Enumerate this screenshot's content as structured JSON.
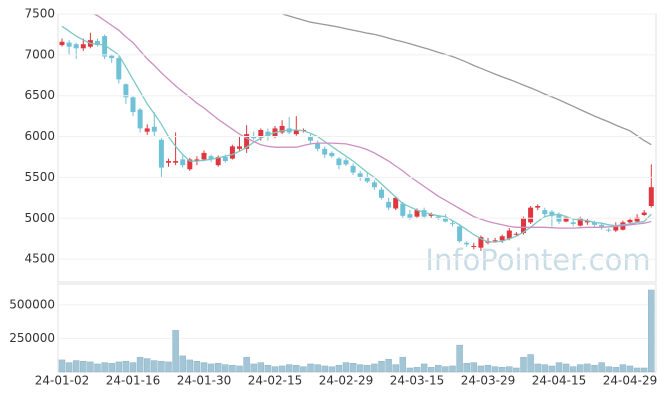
{
  "watermark": "InfoPointer.com",
  "chart_data": [
    {
      "type": "candlestick",
      "ylim": [
        4220,
        7500
      ],
      "yticks": [
        4500,
        5000,
        5500,
        6000,
        6500,
        7000,
        7500
      ],
      "up_color": "#e0363f",
      "down_color": "#6ec1d6",
      "open": [
        7120,
        7150,
        7130,
        7080,
        7100,
        7170,
        7230,
        6990,
        6960,
        6640,
        6480,
        6330,
        6060,
        6120,
        5960,
        5680,
        5680,
        5720,
        5600,
        5700,
        5720,
        5760,
        5650,
        5750,
        5730,
        5850,
        5850,
        6000,
        5990,
        6060,
        6000,
        6050,
        6100,
        6030,
        6080,
        6000,
        5920,
        5850,
        5800,
        5730,
        5710,
        5640,
        5550,
        5500,
        5440,
        5350,
        5200,
        5120,
        5180,
        5050,
        5020,
        5100,
        5030,
        5020,
        5000,
        4940,
        4900,
        4700,
        4650,
        4640,
        4700,
        4720,
        4730,
        4750,
        4800,
        4820,
        4950,
        5130,
        5100,
        5080,
        5050,
        4960,
        4950,
        4910,
        4950,
        4950,
        4920,
        4860,
        4850,
        4860,
        4950,
        4960,
        5040,
        5150
      ],
      "high": [
        7200,
        7180,
        7150,
        7200,
        7270,
        7200,
        7250,
        7010,
        6980,
        6650,
        6500,
        6350,
        6150,
        6300,
        5980,
        5730,
        6050,
        5770,
        5740,
        5760,
        5830,
        5780,
        5770,
        5780,
        5900,
        6000,
        6140,
        6060,
        6100,
        6100,
        6130,
        6200,
        6240,
        6250,
        6100,
        6030,
        5950,
        5880,
        5820,
        5750,
        5740,
        5670,
        5580,
        5560,
        5470,
        5380,
        5250,
        5270,
        5200,
        5100,
        5120,
        5130,
        5070,
        5040,
        5050,
        4970,
        4930,
        4720,
        4700,
        4790,
        4760,
        4760,
        4800,
        4880,
        4830,
        5020,
        5150,
        5170,
        5130,
        5100,
        5070,
        5030,
        4990,
        5020,
        4990,
        4970,
        4950,
        4880,
        4950,
        4970,
        5010,
        5050,
        5100,
        5660
      ],
      "low": [
        7100,
        7000,
        6950,
        7050,
        7080,
        7100,
        6950,
        6900,
        6650,
        6400,
        6250,
        6050,
        6020,
        6000,
        5500,
        5630,
        5650,
        5620,
        5580,
        5650,
        5700,
        5690,
        5630,
        5680,
        5720,
        5820,
        5800,
        5960,
        5950,
        5950,
        5980,
        6030,
        6030,
        6010,
        6050,
        5900,
        5820,
        5740,
        5740,
        5600,
        5640,
        5530,
        5460,
        5430,
        5350,
        5230,
        5100,
        5100,
        5000,
        4980,
        5000,
        5000,
        5000,
        4980,
        4950,
        4900,
        4700,
        4650,
        4620,
        4600,
        4680,
        4700,
        4700,
        4730,
        4780,
        4800,
        4930,
        5100,
        5020,
        4900,
        4930,
        4950,
        4900,
        4900,
        4920,
        4900,
        4860,
        4830,
        4830,
        4850,
        4930,
        4950,
        5030,
        5130
      ],
      "close": [
        7160,
        7100,
        7080,
        7130,
        7180,
        7120,
        6980,
        6960,
        6700,
        6480,
        6300,
        6100,
        6100,
        6060,
        5620,
        5700,
        5700,
        5650,
        5720,
        5720,
        5800,
        5720,
        5750,
        5700,
        5880,
        5880,
        6030,
        5980,
        6080,
        6000,
        6100,
        6130,
        6050,
        6080,
        6080,
        5950,
        5850,
        5780,
        5760,
        5650,
        5660,
        5560,
        5500,
        5450,
        5380,
        5250,
        5130,
        5250,
        5030,
        5000,
        5100,
        5020,
        5050,
        5000,
        4960,
        4930,
        4720,
        4680,
        4660,
        4770,
        4720,
        4730,
        4780,
        4850,
        4810,
        5000,
        5130,
        5150,
        5050,
        5030,
        4960,
        5010,
        4930,
        5000,
        4970,
        4920,
        4900,
        4850,
        4900,
        4950,
        4980,
        5010,
        5070,
        5380
      ],
      "series": [
        {
          "color": "#7cc8c4",
          "values": [
            7350,
            7290,
            7230,
            7180,
            7140,
            7130,
            7120,
            7060,
            7000,
            6850,
            6700,
            6550,
            6400,
            6280,
            6150,
            6000,
            5880,
            5780,
            5700,
            5700,
            5710,
            5720,
            5740,
            5760,
            5780,
            5820,
            5870,
            5930,
            5980,
            6020,
            6050,
            6070,
            6080,
            6080,
            6070,
            6040,
            6000,
            5940,
            5880,
            5820,
            5760,
            5700,
            5630,
            5560,
            5500,
            5420,
            5340,
            5260,
            5180,
            5140,
            5100,
            5070,
            5050,
            5030,
            5020,
            4970,
            4920,
            4860,
            4800,
            4750,
            4710,
            4710,
            4720,
            4750,
            4780,
            4830,
            4890,
            4960,
            5020,
            5040,
            5050,
            5020,
            4990,
            4980,
            4970,
            4950,
            4940,
            4920,
            4910,
            4920,
            4930,
            4950,
            4960,
            5050
          ]
        },
        {
          "color": "#cc8fc4",
          "values": [
            null,
            null,
            null,
            null,
            7520,
            7480,
            7420,
            7360,
            7300,
            7220,
            7150,
            7050,
            6950,
            6870,
            6780,
            6700,
            6620,
            6550,
            6480,
            6410,
            6350,
            6280,
            6210,
            6150,
            6090,
            6030,
            5980,
            5940,
            5900,
            5880,
            5870,
            5870,
            5870,
            5870,
            5890,
            5910,
            5920,
            5920,
            5920,
            5915,
            5910,
            5890,
            5870,
            5840,
            5800,
            5750,
            5700,
            5640,
            5580,
            5510,
            5450,
            5390,
            5330,
            5270,
            5220,
            5170,
            5120,
            5070,
            5020,
            4990,
            4960,
            4940,
            4920,
            4900,
            4890,
            4890,
            4890,
            4890,
            4890,
            4885,
            4880,
            4880,
            4880,
            4885,
            4890,
            4890,
            4890,
            4895,
            4900,
            4910,
            4920,
            4930,
            4940,
            4960
          ]
        },
        {
          "color": "#999999",
          "values": [
            null,
            null,
            null,
            null,
            null,
            null,
            null,
            null,
            null,
            null,
            null,
            null,
            null,
            null,
            null,
            null,
            null,
            null,
            null,
            null,
            null,
            null,
            null,
            null,
            null,
            null,
            null,
            null,
            null,
            null,
            null,
            7500,
            7475,
            7450,
            7425,
            7400,
            7385,
            7370,
            7355,
            7340,
            7320,
            7300,
            7285,
            7265,
            7250,
            7230,
            7205,
            7180,
            7160,
            7135,
            7110,
            7085,
            7060,
            7030,
            7005,
            6980,
            6945,
            6910,
            6870,
            6835,
            6800,
            6765,
            6730,
            6700,
            6665,
            6630,
            6595,
            6560,
            6520,
            6485,
            6450,
            6410,
            6370,
            6330,
            6290,
            6250,
            6215,
            6180,
            6140,
            6105,
            6070,
            6010,
            5950,
            5900
          ]
        }
      ]
    },
    {
      "type": "bar",
      "color": "#a3c6d6",
      "ylim": [
        0,
        640000
      ],
      "yticks": [
        250000,
        500000
      ],
      "categories": [
        "24-01-02",
        null,
        null,
        null,
        null,
        null,
        null,
        null,
        null,
        null,
        "24-01-16",
        null,
        null,
        null,
        null,
        null,
        null,
        null,
        null,
        null,
        "24-01-30",
        null,
        null,
        null,
        null,
        null,
        null,
        null,
        null,
        null,
        "24-02-15",
        null,
        null,
        null,
        null,
        null,
        null,
        null,
        null,
        null,
        "24-02-29",
        null,
        null,
        null,
        null,
        null,
        null,
        null,
        null,
        null,
        "24-03-15",
        null,
        null,
        null,
        null,
        null,
        null,
        null,
        null,
        null,
        "24-03-29",
        null,
        null,
        null,
        null,
        null,
        null,
        null,
        null,
        null,
        "24-04-15",
        null,
        null,
        null,
        null,
        null,
        null,
        null,
        null,
        null,
        "24-04-29",
        null,
        null,
        null
      ],
      "values": [
        90000,
        70000,
        85000,
        80000,
        75000,
        60000,
        70000,
        65000,
        75000,
        80000,
        70000,
        110000,
        100000,
        85000,
        80000,
        75000,
        310000,
        120000,
        90000,
        80000,
        70000,
        60000,
        65000,
        55000,
        50000,
        45000,
        110000,
        60000,
        70000,
        50000,
        40000,
        45000,
        55000,
        50000,
        40000,
        60000,
        55000,
        45000,
        40000,
        50000,
        70000,
        65000,
        55000,
        50000,
        60000,
        80000,
        95000,
        55000,
        110000,
        30000,
        35000,
        60000,
        35000,
        50000,
        40000,
        45000,
        200000,
        65000,
        70000,
        45000,
        50000,
        40000,
        35000,
        40000,
        30000,
        110000,
        130000,
        60000,
        55000,
        45000,
        70000,
        60000,
        40000,
        55000,
        60000,
        50000,
        70000,
        40000,
        35000,
        55000,
        45000,
        30000,
        30000,
        610000
      ]
    }
  ]
}
